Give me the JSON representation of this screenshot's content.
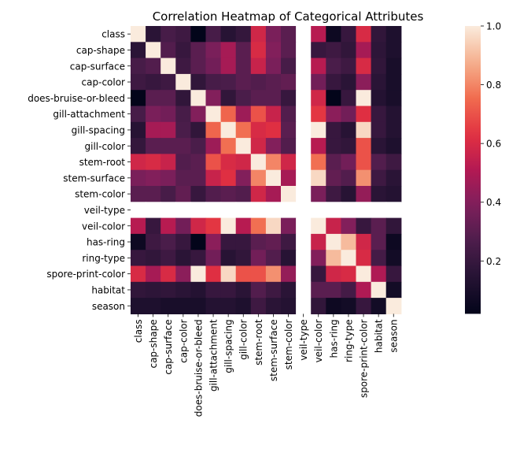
{
  "chart_data": {
    "type": "heatmap",
    "title": "Correlation Heatmap of Categorical Attributes",
    "xlabel": "",
    "ylabel": "",
    "labels": [
      "class",
      "cap-shape",
      "cap-surface",
      "cap-color",
      "does-bruise-or-bleed",
      "gill-attachment",
      "gill-spacing",
      "gill-color",
      "stem-root",
      "stem-surface",
      "stem-color",
      "veil-type",
      "veil-color",
      "has-ring",
      "ring-type",
      "spore-print-color",
      "habitat",
      "season"
    ],
    "vmin": 0.02,
    "vmax": 1.0,
    "colorbar_ticks": [
      0.2,
      0.4,
      0.6,
      0.8,
      1.0
    ],
    "colorbar_tick_labels": [
      "0.2",
      "0.4",
      "0.6",
      "0.8",
      "1.0"
    ],
    "missing_color": "#ffffff",
    "values": [
      [
        1.0,
        0.16,
        0.25,
        0.22,
        0.02,
        0.25,
        0.15,
        0.19,
        0.58,
        0.38,
        0.3,
        null,
        0.52,
        0.06,
        0.2,
        0.6,
        0.18,
        0.12
      ],
      [
        0.16,
        1.0,
        0.28,
        0.2,
        0.3,
        0.38,
        0.48,
        0.3,
        0.6,
        0.4,
        0.3,
        null,
        0.2,
        0.22,
        0.18,
        0.48,
        0.17,
        0.12
      ],
      [
        0.25,
        0.28,
        1.0,
        0.22,
        0.3,
        0.36,
        0.48,
        0.3,
        0.56,
        0.38,
        0.25,
        null,
        0.52,
        0.26,
        0.22,
        0.6,
        0.18,
        0.1
      ],
      [
        0.22,
        0.2,
        0.22,
        1.0,
        0.18,
        0.25,
        0.26,
        0.3,
        0.28,
        0.3,
        0.32,
        null,
        0.36,
        0.2,
        0.16,
        0.42,
        0.16,
        0.1
      ],
      [
        0.02,
        0.3,
        0.3,
        0.18,
        1.0,
        0.4,
        0.18,
        0.26,
        0.3,
        0.3,
        0.2,
        null,
        0.58,
        0.02,
        0.2,
        1.0,
        0.14,
        0.1
      ],
      [
        0.25,
        0.38,
        0.36,
        0.25,
        0.4,
        1.0,
        0.74,
        0.46,
        0.7,
        0.56,
        0.28,
        null,
        0.64,
        0.42,
        0.36,
        0.62,
        0.2,
        0.14
      ],
      [
        0.15,
        0.48,
        0.48,
        0.26,
        0.18,
        0.74,
        1.0,
        0.76,
        0.6,
        0.62,
        0.3,
        null,
        1.0,
        0.2,
        0.15,
        0.96,
        0.2,
        0.14
      ],
      [
        0.19,
        0.3,
        0.3,
        0.3,
        0.26,
        0.46,
        0.76,
        1.0,
        0.58,
        0.4,
        0.28,
        null,
        0.52,
        0.2,
        0.18,
        0.7,
        0.16,
        0.12
      ],
      [
        0.58,
        0.6,
        0.56,
        0.28,
        0.3,
        0.7,
        0.6,
        0.58,
        1.0,
        0.8,
        0.58,
        null,
        0.76,
        0.3,
        0.36,
        0.7,
        0.28,
        0.22
      ],
      [
        0.38,
        0.4,
        0.38,
        0.3,
        0.3,
        0.56,
        0.62,
        0.4,
        0.8,
        1.0,
        0.48,
        null,
        0.96,
        0.32,
        0.28,
        0.82,
        0.22,
        0.16
      ],
      [
        0.3,
        0.3,
        0.25,
        0.32,
        0.2,
        0.28,
        0.3,
        0.28,
        0.58,
        0.48,
        1.0,
        null,
        0.38,
        0.22,
        0.15,
        0.44,
        0.16,
        0.14
      ],
      [
        null,
        null,
        null,
        null,
        null,
        null,
        null,
        null,
        null,
        null,
        null,
        null,
        null,
        null,
        null,
        null,
        null,
        null
      ],
      [
        0.52,
        0.2,
        0.52,
        0.36,
        0.58,
        0.64,
        1.0,
        0.52,
        0.76,
        0.96,
        0.38,
        null,
        1.0,
        0.56,
        0.4,
        0.2,
        0.3,
        0.18
      ],
      [
        0.06,
        0.22,
        0.26,
        0.2,
        0.02,
        0.42,
        0.2,
        0.2,
        0.3,
        0.32,
        0.22,
        null,
        0.56,
        1.0,
        0.9,
        0.58,
        0.3,
        0.06
      ],
      [
        0.2,
        0.18,
        0.22,
        0.16,
        0.2,
        0.36,
        0.15,
        0.18,
        0.36,
        0.28,
        0.15,
        null,
        0.4,
        0.9,
        1.0,
        0.6,
        0.24,
        0.08
      ],
      [
        0.6,
        0.48,
        0.6,
        0.42,
        1.0,
        0.62,
        0.96,
        0.7,
        0.7,
        0.82,
        0.44,
        null,
        0.2,
        0.58,
        0.6,
        1.0,
        0.5,
        0.2
      ],
      [
        0.18,
        0.17,
        0.18,
        0.16,
        0.14,
        0.2,
        0.2,
        0.16,
        0.28,
        0.22,
        0.16,
        null,
        0.3,
        0.3,
        0.24,
        0.5,
        1.0,
        0.08
      ],
      [
        0.12,
        0.12,
        0.1,
        0.1,
        0.1,
        0.14,
        0.14,
        0.12,
        0.22,
        0.16,
        0.14,
        null,
        0.18,
        0.06,
        0.08,
        0.2,
        0.08,
        1.0
      ]
    ]
  }
}
